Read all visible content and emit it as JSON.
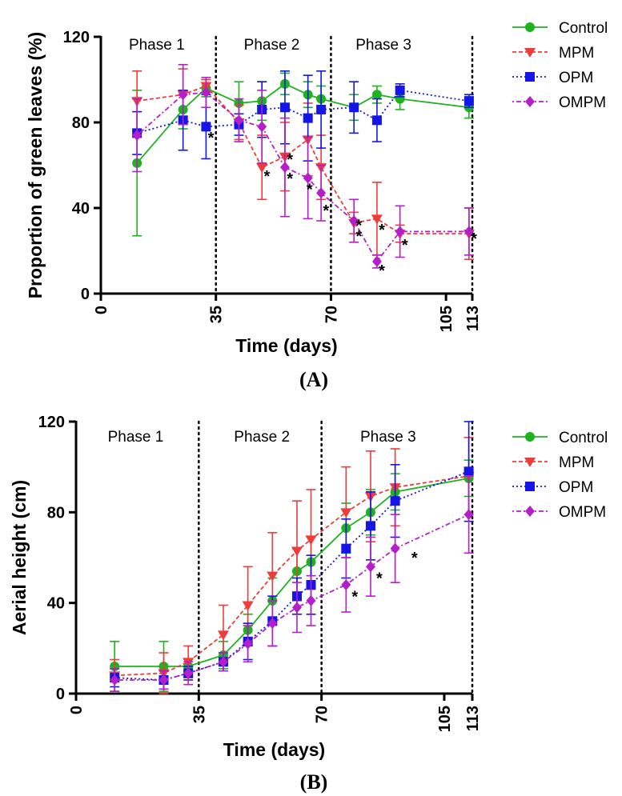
{
  "chart_data": [
    {
      "panel": "(A)",
      "type": "line",
      "xlabel": "Time (days)",
      "ylabel": "Proportion of green leaves (%)",
      "xlim": [
        0,
        113
      ],
      "ylim": [
        0,
        120
      ],
      "xticks": [
        0,
        35,
        70,
        105,
        113
      ],
      "yticks": [
        0,
        40,
        80,
        120
      ],
      "phase_boundaries": [
        35,
        70,
        113
      ],
      "phases": [
        {
          "label": "Phase 1",
          "x": 17
        },
        {
          "label": "Phase 2",
          "x": 52
        },
        {
          "label": "Phase 3",
          "x": 86
        }
      ],
      "series": [
        {
          "name": "Control",
          "color": "#1db31d",
          "dash": "",
          "marker": "circle",
          "points": [
            {
              "x": 11,
              "y": 61,
              "err": 34
            },
            {
              "x": 25,
              "y": 86,
              "err": 9
            },
            {
              "x": 32,
              "y": 96,
              "err": 4
            },
            {
              "x": 42,
              "y": 89,
              "err": 10
            },
            {
              "x": 49,
              "y": 90,
              "err": 9
            },
            {
              "x": 56,
              "y": 98,
              "err": 5
            },
            {
              "x": 63,
              "y": 93,
              "err": 6
            },
            {
              "x": 67,
              "y": 91,
              "err": 6
            },
            {
              "x": 77,
              "y": 87,
              "err": 6
            },
            {
              "x": 84,
              "y": 93,
              "err": 4
            },
            {
              "x": 91,
              "y": 91,
              "err": 5
            },
            {
              "x": 112,
              "y": 87,
              "err": 5
            }
          ]
        },
        {
          "name": "MPM",
          "color": "#ee3b3b",
          "dash": "5 3",
          "marker": "triangle-down",
          "points": [
            {
              "x": 11,
              "y": 90,
              "err": 14
            },
            {
              "x": 25,
              "y": 93,
              "err": 12
            },
            {
              "x": 32,
              "y": 97,
              "err": 3
            },
            {
              "x": 42,
              "y": 80,
              "err": 8
            },
            {
              "x": 49,
              "y": 59,
              "err": 15
            },
            {
              "x": 56,
              "y": 64,
              "err": 16
            },
            {
              "x": 63,
              "y": 72,
              "err": 17
            },
            {
              "x": 67,
              "y": 59,
              "err": 15
            },
            {
              "x": 77,
              "y": 33,
              "err": 5
            },
            {
              "x": 84,
              "y": 35,
              "err": 17
            },
            {
              "x": 91,
              "y": 28,
              "err": 4
            },
            {
              "x": 112,
              "y": 28,
              "err": 12
            }
          ]
        },
        {
          "name": "OPM",
          "color": "#1515e6",
          "dash": "2 3",
          "marker": "square",
          "points": [
            {
              "x": 11,
              "y": 75,
              "err": 10
            },
            {
              "x": 25,
              "y": 81,
              "err": 14
            },
            {
              "x": 32,
              "y": 78,
              "err": 15
            },
            {
              "x": 42,
              "y": 79,
              "err": 5
            },
            {
              "x": 49,
              "y": 86,
              "err": 13
            },
            {
              "x": 56,
              "y": 87,
              "err": 17
            },
            {
              "x": 63,
              "y": 82,
              "err": 20
            },
            {
              "x": 67,
              "y": 86,
              "err": 18
            },
            {
              "x": 77,
              "y": 87,
              "err": 12
            },
            {
              "x": 84,
              "y": 81,
              "err": 10
            },
            {
              "x": 91,
              "y": 95,
              "err": 3
            },
            {
              "x": 112,
              "y": 90,
              "err": 3
            }
          ]
        },
        {
          "name": "OMPM",
          "color": "#b51fc9",
          "dash": "2 3 6 3",
          "marker": "diamond",
          "points": [
            {
              "x": 11,
              "y": 74,
              "err": 17
            },
            {
              "x": 25,
              "y": 93,
              "err": 14
            },
            {
              "x": 32,
              "y": 94,
              "err": 7
            },
            {
              "x": 42,
              "y": 81,
              "err": 10
            },
            {
              "x": 49,
              "y": 78,
              "err": 17
            },
            {
              "x": 56,
              "y": 59,
              "err": 23
            },
            {
              "x": 63,
              "y": 54,
              "err": 19
            },
            {
              "x": 67,
              "y": 47,
              "err": 13
            },
            {
              "x": 77,
              "y": 34,
              "err": 10
            },
            {
              "x": 84,
              "y": 15,
              "err": 3
            },
            {
              "x": 91,
              "y": 29,
              "err": 12
            },
            {
              "x": 112,
              "y": 29,
              "err": 11
            }
          ]
        }
      ],
      "annotations": [
        {
          "text": "*",
          "x": 33.5,
          "y": 74
        },
        {
          "text": "*",
          "x": 50.5,
          "y": 56
        },
        {
          "text": "*",
          "x": 57.5,
          "y": 64
        },
        {
          "text": "*",
          "x": 57.5,
          "y": 55
        },
        {
          "text": "*",
          "x": 63.5,
          "y": 50
        },
        {
          "text": "*",
          "x": 68.5,
          "y": 40
        },
        {
          "text": "*",
          "x": 78.5,
          "y": 33
        },
        {
          "text": "*",
          "x": 78.5,
          "y": 28
        },
        {
          "text": "*",
          "x": 85.5,
          "y": 31
        },
        {
          "text": "*",
          "x": 85.5,
          "y": 12
        },
        {
          "text": "*",
          "x": 92.5,
          "y": 24
        },
        {
          "text": "*",
          "x": 113.5,
          "y": 27
        }
      ]
    },
    {
      "panel": "(B)",
      "type": "line",
      "xlabel": "Time (days)",
      "ylabel": "Aerial height (cm)",
      "xlim": [
        0,
        113
      ],
      "ylim": [
        0,
        120
      ],
      "xticks": [
        0,
        35,
        70,
        105,
        113
      ],
      "yticks": [
        0,
        40,
        80,
        120
      ],
      "phase_boundaries": [
        35,
        70,
        113
      ],
      "phases": [
        {
          "label": "Phase 1",
          "x": 17
        },
        {
          "label": "Phase 2",
          "x": 53
        },
        {
          "label": "Phase 3",
          "x": 89
        }
      ],
      "series": [
        {
          "name": "Control",
          "color": "#1db31d",
          "dash": "",
          "marker": "circle",
          "points": [
            {
              "x": 11,
              "y": 12,
              "err": 11
            },
            {
              "x": 25,
              "y": 12,
              "err": 11
            },
            {
              "x": 32,
              "y": 12,
              "err": 3
            },
            {
              "x": 42,
              "y": 17,
              "err": 6
            },
            {
              "x": 49,
              "y": 28,
              "err": 7
            },
            {
              "x": 56,
              "y": 41,
              "err": 10
            },
            {
              "x": 63,
              "y": 54,
              "err": 10
            },
            {
              "x": 67,
              "y": 58,
              "err": 11
            },
            {
              "x": 77,
              "y": 73,
              "err": 11
            },
            {
              "x": 84,
              "y": 80,
              "err": 10
            },
            {
              "x": 91,
              "y": 89,
              "err": 8
            },
            {
              "x": 112,
              "y": 95,
              "err": 8
            }
          ]
        },
        {
          "name": "MPM",
          "color": "#ee3b3b",
          "dash": "5 3",
          "marker": "triangle-down",
          "points": [
            {
              "x": 11,
              "y": 8,
              "err": 7
            },
            {
              "x": 25,
              "y": 9,
              "err": 9
            },
            {
              "x": 32,
              "y": 14,
              "err": 7
            },
            {
              "x": 42,
              "y": 26,
              "err": 13
            },
            {
              "x": 49,
              "y": 39,
              "err": 17
            },
            {
              "x": 56,
              "y": 52,
              "err": 19
            },
            {
              "x": 63,
              "y": 63,
              "err": 22
            },
            {
              "x": 67,
              "y": 68,
              "err": 22
            },
            {
              "x": 77,
              "y": 80,
              "err": 20
            },
            {
              "x": 84,
              "y": 87,
              "err": 20
            },
            {
              "x": 91,
              "y": 91,
              "err": 17
            },
            {
              "x": 112,
              "y": 96,
              "err": 17
            }
          ]
        },
        {
          "name": "OPM",
          "color": "#1515e6",
          "dash": "2 3",
          "marker": "square",
          "points": [
            {
              "x": 11,
              "y": 7,
              "err": 4
            },
            {
              "x": 25,
              "y": 6,
              "err": 4
            },
            {
              "x": 32,
              "y": 9,
              "err": 3
            },
            {
              "x": 42,
              "y": 14,
              "err": 4
            },
            {
              "x": 49,
              "y": 23,
              "err": 8
            },
            {
              "x": 56,
              "y": 32,
              "err": 11
            },
            {
              "x": 63,
              "y": 43,
              "err": 8
            },
            {
              "x": 67,
              "y": 48,
              "err": 13
            },
            {
              "x": 77,
              "y": 64,
              "err": 13
            },
            {
              "x": 84,
              "y": 74,
              "err": 15
            },
            {
              "x": 91,
              "y": 85,
              "err": 16
            },
            {
              "x": 112,
              "y": 98,
              "err": 22
            }
          ]
        },
        {
          "name": "OMPM",
          "color": "#b51fc9",
          "dash": "2 3 6 3",
          "marker": "diamond",
          "points": [
            {
              "x": 11,
              "y": 6,
              "err": 5
            },
            {
              "x": 25,
              "y": 6,
              "err": 4
            },
            {
              "x": 32,
              "y": 9,
              "err": 5
            },
            {
              "x": 42,
              "y": 14,
              "err": 4
            },
            {
              "x": 49,
              "y": 22,
              "err": 8
            },
            {
              "x": 56,
              "y": 31,
              "err": 10
            },
            {
              "x": 63,
              "y": 38,
              "err": 11
            },
            {
              "x": 67,
              "y": 41,
              "err": 11
            },
            {
              "x": 77,
              "y": 48,
              "err": 12
            },
            {
              "x": 84,
              "y": 56,
              "err": 13
            },
            {
              "x": 91,
              "y": 64,
              "err": 15
            },
            {
              "x": 112,
              "y": 79,
              "err": 17
            }
          ]
        }
      ],
      "annotations": [
        {
          "text": "*",
          "x": 79.5,
          "y": 44
        },
        {
          "text": "*",
          "x": 86.5,
          "y": 52
        },
        {
          "text": "*",
          "x": 96.5,
          "y": 61
        }
      ]
    }
  ]
}
